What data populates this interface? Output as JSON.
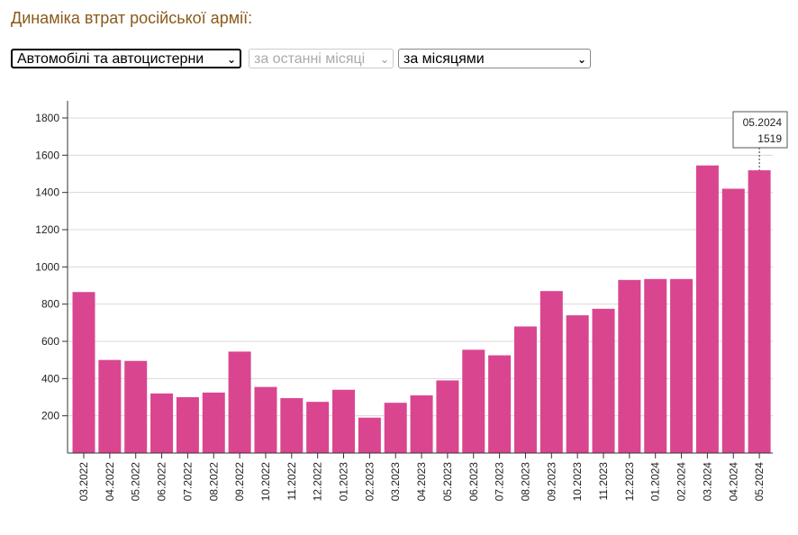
{
  "page": {
    "title": "Динаміка втрат російської армії:"
  },
  "controls": {
    "category": "Автомобілі та автоцистерни",
    "period": "за останні місяці",
    "grouping": "за місяцями"
  },
  "colors": {
    "bar": "#d9468f",
    "grid": "#d8d8d8",
    "title": "#8a5a1a"
  },
  "chart_data": {
    "type": "bar",
    "categories": [
      "03.2022",
      "04.2022",
      "05.2022",
      "06.2022",
      "07.2022",
      "08.2022",
      "09.2022",
      "10.2022",
      "11.2022",
      "12.2022",
      "01.2023",
      "02.2023",
      "03.2023",
      "04.2023",
      "05.2023",
      "06.2023",
      "07.2023",
      "08.2023",
      "09.2023",
      "10.2023",
      "11.2023",
      "12.2023",
      "01.2024",
      "02.2024",
      "03.2024",
      "04.2024",
      "05.2024"
    ],
    "values": [
      865,
      500,
      495,
      320,
      300,
      325,
      545,
      355,
      295,
      275,
      340,
      190,
      270,
      310,
      390,
      555,
      525,
      680,
      870,
      740,
      775,
      930,
      935,
      935,
      1545,
      1420,
      1519
    ],
    "yticks": [
      200,
      400,
      600,
      800,
      1000,
      1200,
      1400,
      1600,
      1800
    ],
    "ylim": [
      0,
      1900
    ],
    "grid": true,
    "tooltip": {
      "label": "05.2024",
      "value": "1519"
    }
  }
}
